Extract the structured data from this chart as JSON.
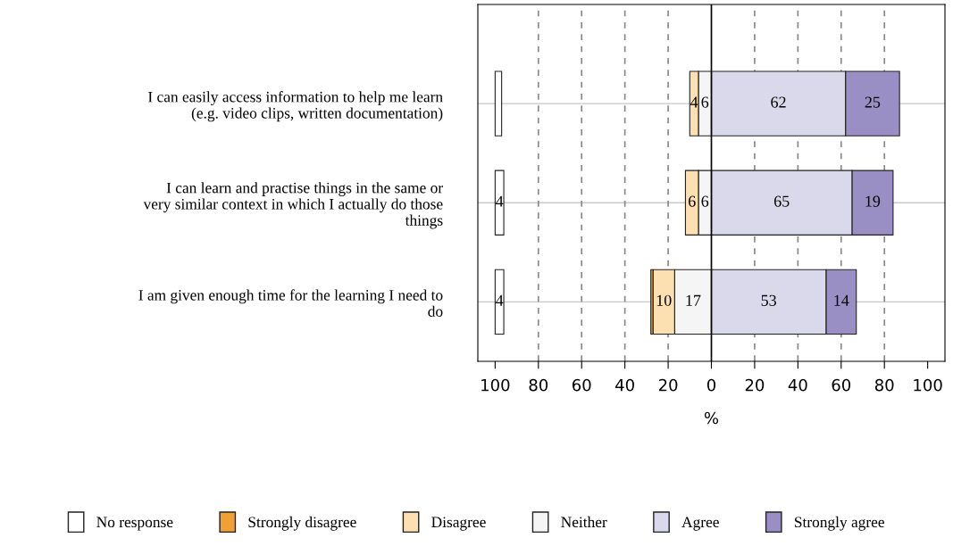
{
  "chart_data": {
    "type": "bar",
    "orientation": "horizontal",
    "categories": [
      "I can easily access information to help me learn\n(e.g. video clips, written documentation)",
      "I can learn and practise things in the same or\nvery similar context in which I actually do those\nthings",
      "I am given enough time for the learning I need to\ndo"
    ],
    "series": [
      {
        "name": "No response",
        "color": "#ffffff",
        "base": [
          -100,
          -100,
          -100
        ],
        "values": [
          3,
          4,
          4
        ],
        "value_labels": [
          null,
          "4",
          "4"
        ]
      },
      {
        "name": "Strongly disagree",
        "color": "#f0a035",
        "base": [
          null,
          null,
          -28
        ],
        "values": [
          null,
          null,
          1
        ]
      },
      {
        "name": "Disagree",
        "color": "#fde0b2",
        "base": [
          -10,
          -12,
          -27
        ],
        "values": [
          4,
          6,
          10
        ],
        "value_labels": [
          "4",
          "6",
          "10"
        ]
      },
      {
        "name": "Neither",
        "color": "#f5f5f5",
        "base": [
          -6,
          -6,
          -17
        ],
        "values": [
          6,
          6,
          17
        ],
        "value_labels": [
          "6",
          "6",
          "17"
        ]
      },
      {
        "name": "Agree",
        "color": "#d9d9eb",
        "base": [
          0,
          0,
          0
        ],
        "values": [
          62,
          65,
          53
        ],
        "value_labels": [
          "62",
          "65",
          "53"
        ]
      },
      {
        "name": "Strongly agree",
        "color": "#9a8fc4",
        "base": [
          62,
          65,
          53
        ],
        "values": [
          25,
          19,
          14
        ],
        "value_labels": [
          "25",
          "19",
          "14"
        ]
      }
    ],
    "xlabel": "%",
    "xlim": [
      -108,
      108
    ],
    "xticks": [
      {
        "value": -100,
        "label": "100"
      },
      {
        "value": -80,
        "label": "80"
      },
      {
        "value": -60,
        "label": "60"
      },
      {
        "value": -40,
        "label": "40"
      },
      {
        "value": -20,
        "label": "20"
      },
      0,
      20,
      40,
      60,
      80,
      100
    ],
    "grid": "y",
    "ref_lines": [
      {
        "axis": "x",
        "value": 0,
        "color": "#000000",
        "line_style": "solid"
      },
      {
        "axis": "x",
        "value": -80,
        "color": "#888888",
        "line_style": "dashed"
      },
      {
        "axis": "x",
        "value": -60,
        "color": "#888888",
        "line_style": "dashed"
      },
      {
        "axis": "x",
        "value": -40,
        "color": "#888888",
        "line_style": "dashed"
      },
      {
        "axis": "x",
        "value": -20,
        "color": "#888888",
        "line_style": "dashed"
      },
      {
        "axis": "x",
        "value": 20,
        "color": "#888888",
        "line_style": "dashed"
      },
      {
        "axis": "x",
        "value": 40,
        "color": "#888888",
        "line_style": "dashed"
      },
      {
        "axis": "x",
        "value": 60,
        "color": "#888888",
        "line_style": "dashed"
      },
      {
        "axis": "x",
        "value": 80,
        "color": "#888888",
        "line_style": "dashed"
      }
    ],
    "legend": "bottom"
  }
}
